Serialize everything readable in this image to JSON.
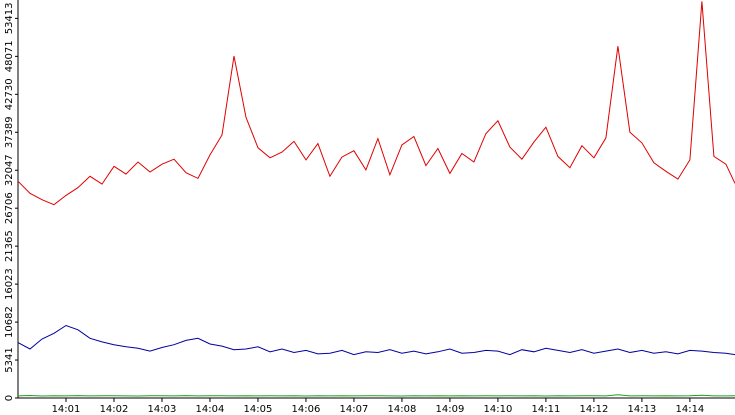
{
  "chart_data": {
    "type": "line",
    "x": [
      0,
      0.25,
      0.5,
      0.75,
      1,
      1.25,
      1.5,
      1.75,
      2,
      2.25,
      2.5,
      2.75,
      3,
      3.25,
      3.5,
      3.75,
      4,
      4.25,
      4.5,
      4.75,
      5,
      5.25,
      5.5,
      5.75,
      6,
      6.25,
      6.5,
      6.75,
      7,
      7.25,
      7.5,
      7.75,
      8,
      8.25,
      8.5,
      8.75,
      9,
      9.25,
      9.5,
      9.75,
      10,
      10.25,
      10.5,
      10.75,
      11,
      11.25,
      11.5,
      11.75,
      12,
      12.25,
      12.5,
      12.75,
      13,
      13.25,
      13.5,
      13.75,
      14,
      14.25,
      14.5,
      14.75,
      14.94
    ],
    "series": [
      {
        "color": "#e00000",
        "values": [
          30500,
          28800,
          27900,
          27200,
          28500,
          29600,
          31200,
          30100,
          32600,
          31500,
          33200,
          31800,
          32900,
          33600,
          31700,
          30900,
          34200,
          37000,
          48100,
          39500,
          35200,
          33800,
          34600,
          36100,
          33500,
          35800,
          31200,
          33900,
          34800,
          32100,
          36500,
          31400,
          35600,
          36800,
          32700,
          35100,
          31600,
          34400,
          33200,
          37200,
          39000,
          35300,
          33600,
          36000,
          38100,
          34000,
          32400,
          35500,
          33800,
          36600,
          49500,
          37400,
          35900,
          33100,
          31900,
          30800,
          33500,
          55800,
          34000,
          32900,
          30200
        ]
      },
      {
        "color": "#0000a0",
        "values": [
          7800,
          6900,
          8300,
          9100,
          10200,
          9600,
          8400,
          7900,
          7500,
          7200,
          7000,
          6600,
          7100,
          7500,
          8100,
          8400,
          7600,
          7300,
          6800,
          6900,
          7200,
          6500,
          6900,
          6400,
          6700,
          6200,
          6300,
          6700,
          6100,
          6500,
          6400,
          6800,
          6300,
          6600,
          6200,
          6500,
          6900,
          6300,
          6400,
          6700,
          6600,
          6100,
          6800,
          6500,
          7000,
          6700,
          6400,
          6800,
          6300,
          6600,
          6900,
          6400,
          6700,
          6300,
          6500,
          6200,
          6700,
          6600,
          6400,
          6300,
          6100
        ]
      },
      {
        "color": "#20a020",
        "values": [
          300,
          350,
          280,
          320,
          300,
          340,
          290,
          310,
          330,
          300,
          280,
          320,
          310,
          290,
          340,
          300,
          320,
          310,
          300,
          330,
          290,
          310,
          300,
          320,
          280,
          310,
          300,
          330,
          290,
          310,
          320,
          300,
          280,
          310,
          300,
          320,
          290,
          330,
          300,
          310,
          290,
          320,
          300,
          310,
          280,
          330,
          300,
          310,
          320,
          290,
          450,
          300,
          310,
          290,
          320,
          300,
          310,
          400,
          300,
          290,
          310
        ]
      }
    ],
    "xlim": [
      0,
      14.94
    ],
    "xticks": [
      {
        "value": 1,
        "label": "14:01"
      },
      {
        "value": 2,
        "label": "14:02"
      },
      {
        "value": 3,
        "label": "14:03"
      },
      {
        "value": 4,
        "label": "14:04"
      },
      {
        "value": 5,
        "label": "14:05"
      },
      {
        "value": 6,
        "label": "14:06"
      },
      {
        "value": 7,
        "label": "14:07"
      },
      {
        "value": 8,
        "label": "14:08"
      },
      {
        "value": 9,
        "label": "14:09"
      },
      {
        "value": 10,
        "label": "14:10"
      },
      {
        "value": 11,
        "label": "14:11"
      },
      {
        "value": 12,
        "label": "14:12"
      },
      {
        "value": 13,
        "label": "14:13"
      },
      {
        "value": 14,
        "label": "14:14"
      }
    ],
    "ylim": [
      0,
      56000
    ],
    "yticks": [
      0,
      5341,
      10682,
      16023,
      21365,
      26706,
      32047,
      37389,
      42730,
      48071,
      53413
    ]
  }
}
